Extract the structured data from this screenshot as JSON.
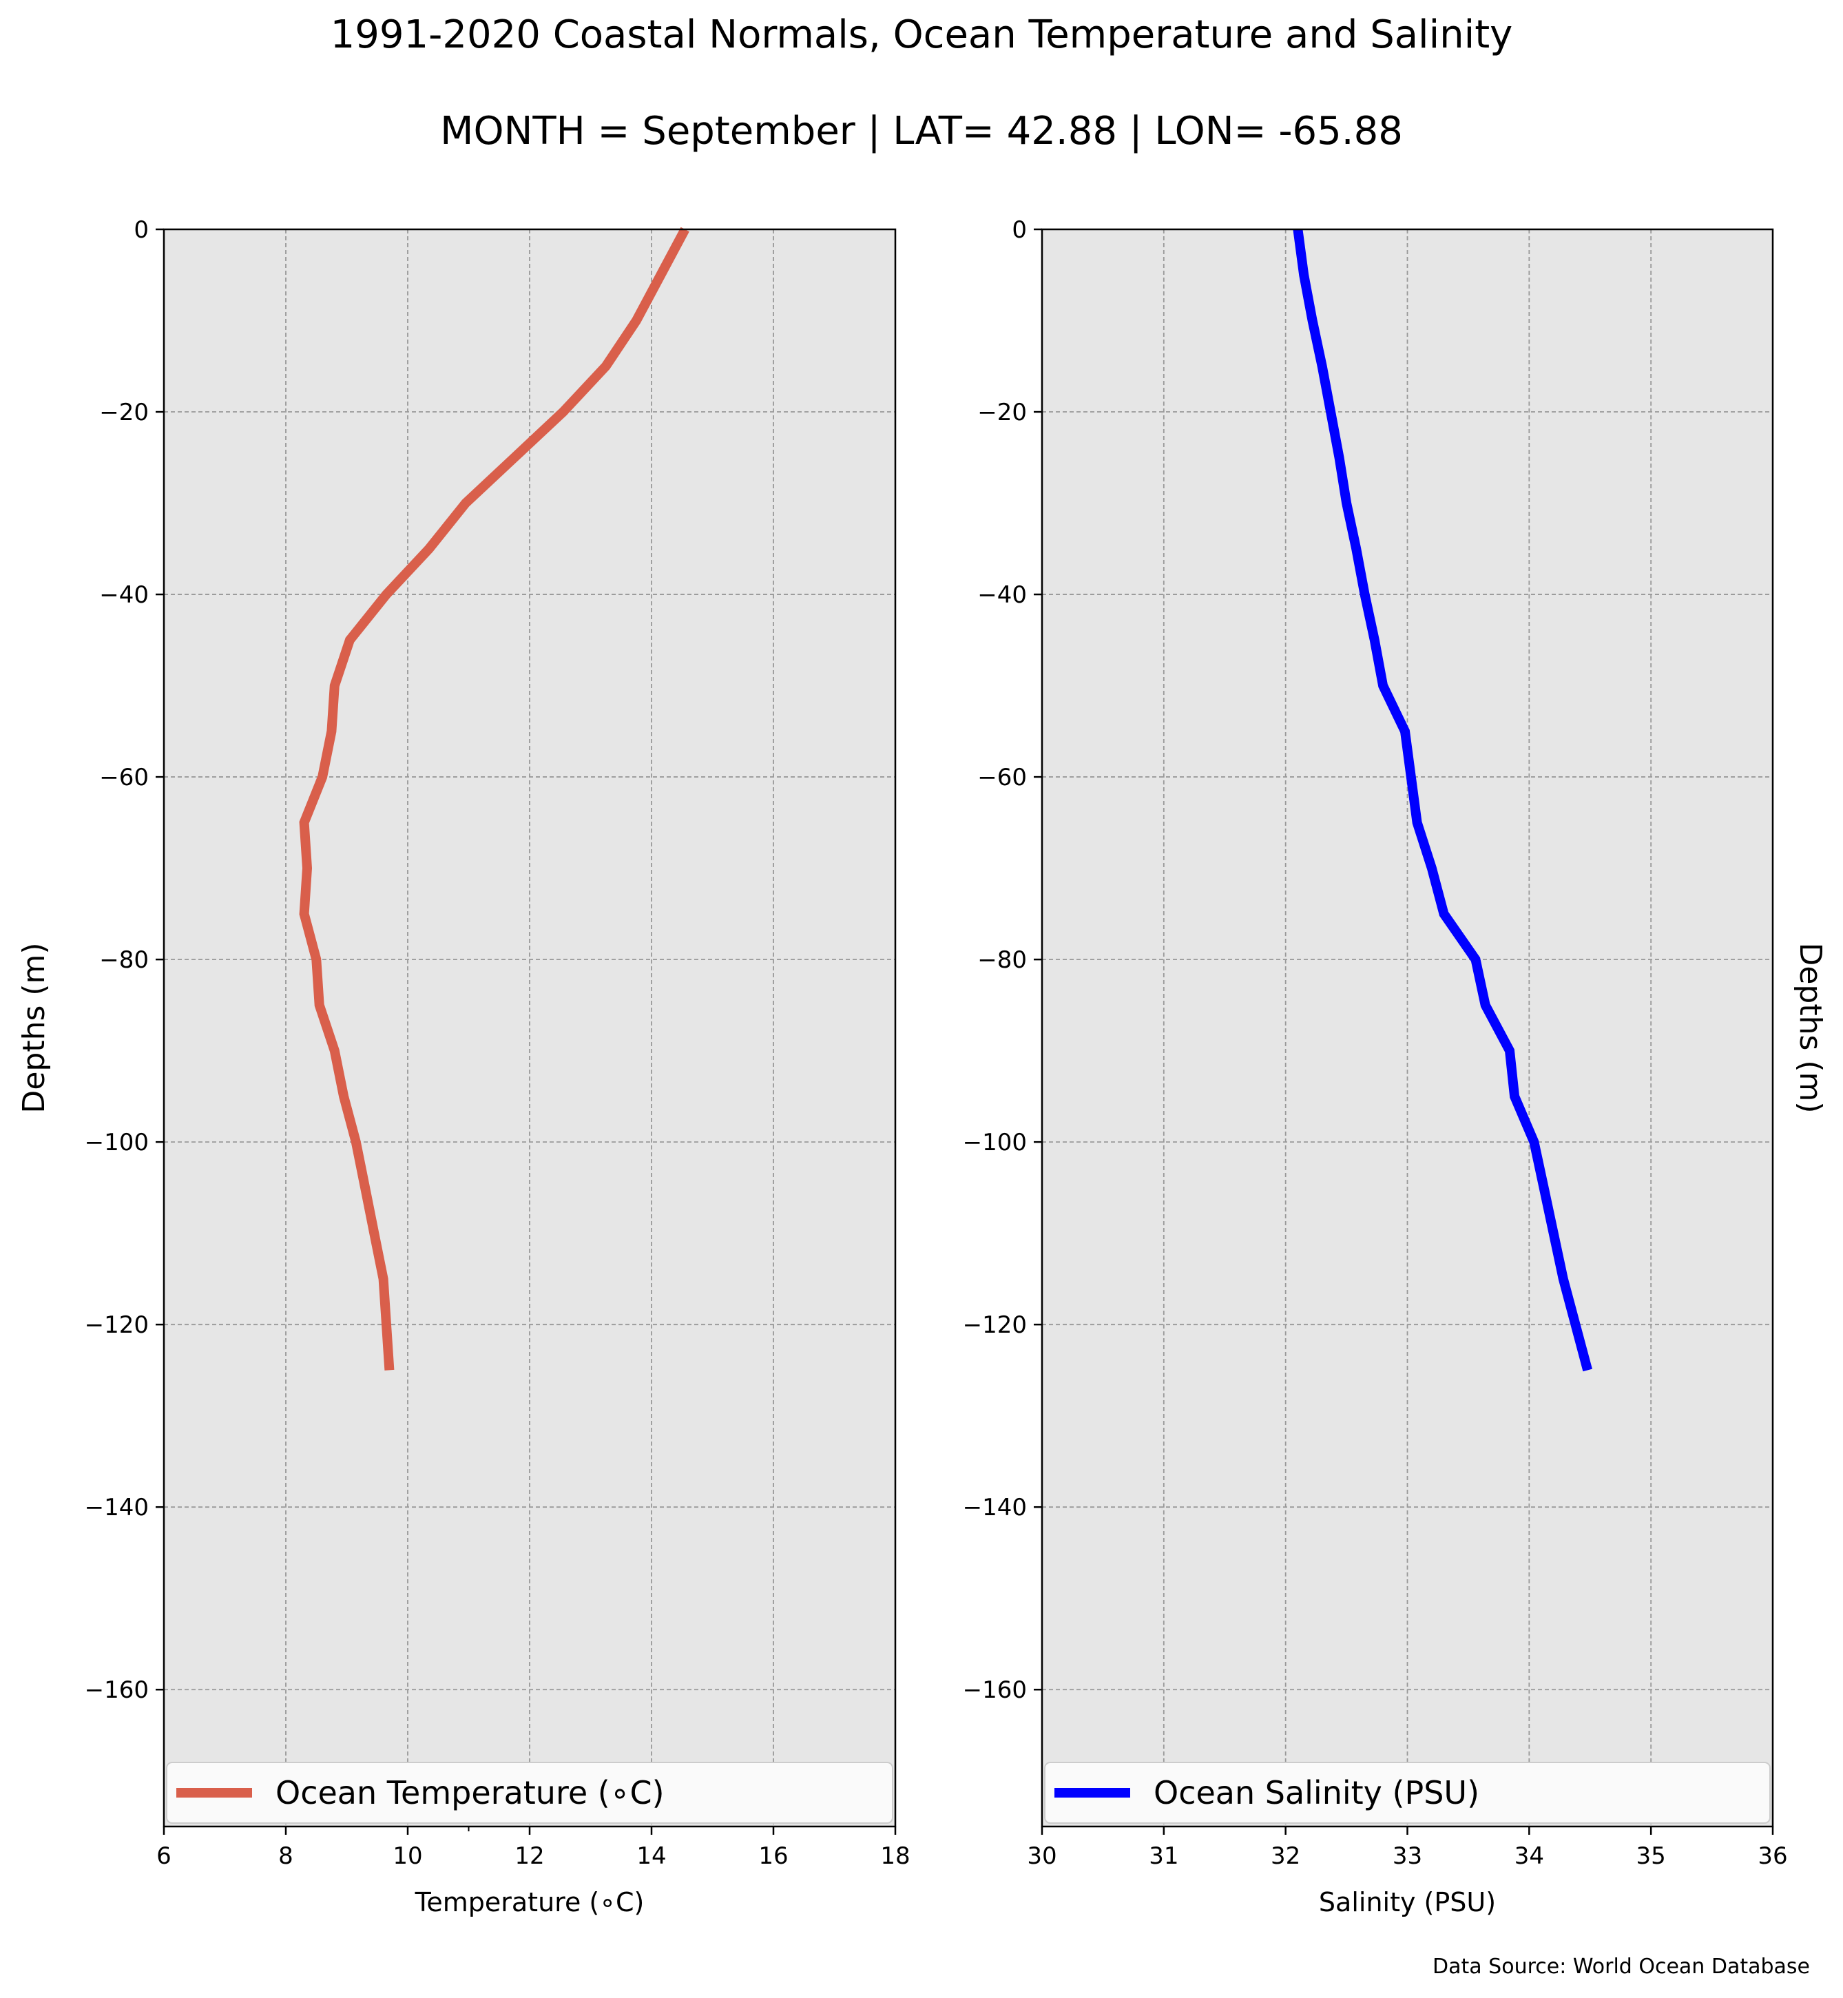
{
  "title": "1991-2020 Coastal Normals, Ocean Temperature and Salinity",
  "subtitle": "MONTH = September | LAT= 42.88 | LON= -65.88",
  "source": "Data Source: World Ocean Database",
  "colors": {
    "temperature": "#d95f4b",
    "salinity": "#0000ff",
    "plot_bg": "#e6e6e6",
    "grid": "#999999"
  },
  "chart_data": [
    {
      "type": "line",
      "xlabel": "Temperature ($^\\circ$C)",
      "ylabel": "Depths (m)",
      "xlim": [
        6,
        18
      ],
      "ylim": [
        -175,
        0
      ],
      "xticks": [
        "6",
        "8",
        "10",
        "12",
        "14",
        "16",
        "18"
      ],
      "yticks": [
        "0",
        "−20",
        "−40",
        "−60",
        "−80",
        "−100",
        "−120",
        "−140",
        "−160"
      ],
      "grid": true,
      "legend_position": "bottom",
      "series": [
        {
          "name": "Ocean Temperature ($^\\circ$C)",
          "x": [
            14.55,
            14.15,
            13.75,
            13.25,
            12.55,
            11.75,
            10.95,
            10.35,
            9.65,
            9.05,
            8.8,
            8.75,
            8.6,
            8.3,
            8.35,
            8.3,
            8.5,
            8.55,
            8.8,
            8.95,
            9.15,
            9.3,
            9.45,
            9.6,
            9.7
          ],
          "y": [
            0,
            -5,
            -10,
            -15,
            -20,
            -25,
            -30,
            -35,
            -40,
            -45,
            -50,
            -55,
            -60,
            -65,
            -70,
            -75,
            -80,
            -85,
            -90,
            -95,
            -100,
            -105,
            -110,
            -115,
            -125
          ]
        }
      ]
    },
    {
      "type": "line",
      "xlabel": "Salinity (PSU)",
      "ylabel": "Depths (m)",
      "xlim": [
        30,
        36
      ],
      "ylim": [
        -175,
        0
      ],
      "xticks": [
        "30",
        "31",
        "32",
        "33",
        "34",
        "35",
        "36"
      ],
      "yticks": [
        "0",
        "−20",
        "−40",
        "−60",
        "−80",
        "−100",
        "−120",
        "−140",
        "−160"
      ],
      "grid": true,
      "legend_position": "bottom",
      "series": [
        {
          "name": "Ocean Salinity (PSU)",
          "x": [
            32.1,
            32.15,
            32.22,
            32.3,
            32.37,
            32.44,
            32.5,
            32.58,
            32.65,
            32.73,
            32.8,
            32.98,
            33.03,
            33.08,
            33.2,
            33.3,
            33.56,
            33.64,
            33.84,
            33.88,
            34.04,
            34.12,
            34.2,
            34.28,
            34.48
          ],
          "y": [
            0,
            -5,
            -10,
            -15,
            -20,
            -25,
            -30,
            -35,
            -40,
            -45,
            -50,
            -55,
            -60,
            -65,
            -70,
            -75,
            -80,
            -85,
            -90,
            -95,
            -100,
            -105,
            -110,
            -115,
            -125
          ]
        }
      ]
    }
  ]
}
